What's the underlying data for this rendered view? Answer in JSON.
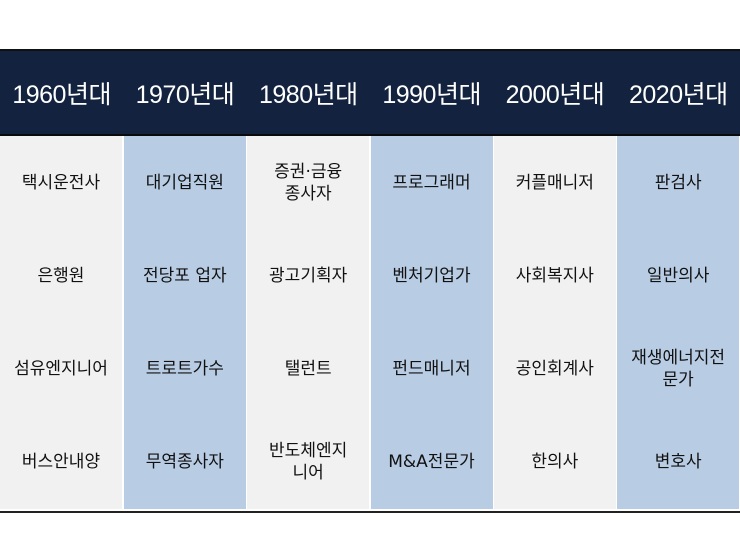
{
  "colors": {
    "header_bg": "#13233f",
    "header_text": "#ffffff",
    "col_gray": "#f1f1f1",
    "col_blue": "#b8cce4"
  },
  "headers": [
    "1960년대",
    "1970년대",
    "1980년대",
    "1990년대",
    "2000년대",
    "2020년대"
  ],
  "columns": [
    [
      "택시운전사",
      "은행원",
      "섬유엔지니어",
      "버스안내양"
    ],
    [
      "대기업직원",
      "전당포 업자",
      "트로트가수",
      "무역종사자"
    ],
    [
      "증권·금융\n종사자",
      "광고기획자",
      "탤런트",
      "반도체엔지\n니어"
    ],
    [
      "프로그래머",
      "벤처기업가",
      "펀드매니저",
      "M&A전문가"
    ],
    [
      "커플매니저",
      "사회복지사",
      "공인회계사",
      "한의사"
    ],
    [
      "판검사",
      "일반의사",
      "재생에너지전\n문가",
      "변호사"
    ]
  ]
}
